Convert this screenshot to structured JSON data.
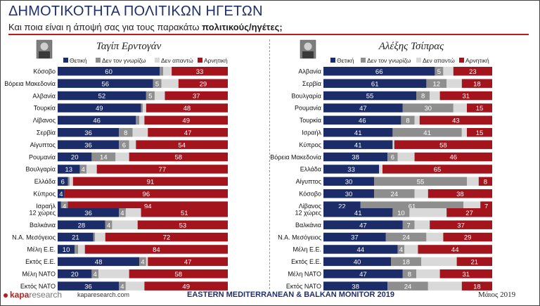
{
  "header": {
    "title": "ΔΗΜΟΤΙΚΟΤΗΤΑ ΠΟΛΙΤΙΚΩΝ ΗΓΕΤΩΝ",
    "subtitle_plain": "Και ποια είναι η άποψή σας για τους παρακάτω ",
    "subtitle_bold": "πολιτικούς/ηγέτες;"
  },
  "footer": {
    "brand_main": "kapa",
    "brand_light": "research",
    "url": "kaparesearch.com",
    "center": "EASTERN MEDITERRANEAN & BALKAN MONITOR 2019",
    "date": "Μάιος 2019"
  },
  "colors": {
    "positive": "#1b2c68",
    "dontknow": "#8e8e8e",
    "noanswer": "#d9d9d9",
    "negative": "#a3141d",
    "accent_line": "#c01b1b"
  },
  "chart_data": [
    {
      "type": "bar",
      "stacked": true,
      "orientation": "horizontal",
      "leader": "Ταγίπ Ερντογάν",
      "legend": [
        "Θετική",
        "Δεν τον γνωρίζω",
        "Δεν απαντώ",
        "Αρνητική"
      ],
      "groups": [
        {
          "categories": [
            "Κόσοβο",
            "Βόρεια Μακεδονία",
            "Αλβανία",
            "Τουρκία",
            "Λίβανος",
            "Σερβία",
            "Αίγυπτος",
            "Ρουμανία",
            "Βουλγαρία",
            "Ελλάδα",
            "Κύπρος",
            "Ισραήλ"
          ],
          "series": [
            {
              "name": "Θετική",
              "values": [
                60,
                56,
                52,
                49,
                46,
                36,
                36,
                20,
                13,
                6,
                4,
                2
              ]
            },
            {
              "name": "Δεν τον γνωρίζω",
              "values": [
                2,
                5,
                5,
                1,
                2,
                8,
                6,
                14,
                4,
                1,
                0,
                4
              ]
            },
            {
              "name": "Δεν απαντώ",
              "values": [
                5,
                10,
                6,
                2,
                3,
                9,
                4,
                8,
                6,
                2,
                0,
                0
              ]
            },
            {
              "name": "Αρνητική",
              "values": [
                33,
                29,
                37,
                48,
                49,
                47,
                54,
                58,
                77,
                91,
                96,
                94
              ]
            }
          ]
        },
        {
          "categories": [
            "12 χώρες",
            "Βαλκάνια",
            "Ν.Α. Μεσόγειος",
            "Μέλη Ε.Ε.",
            "Εκτός Ε.Ε.",
            "Μέλη ΝΑΤΟ",
            "Εκτός ΝΑΤΟ"
          ],
          "series": [
            {
              "name": "Θετική",
              "values": [
                36,
                28,
                21,
                10,
                48,
                20,
                36
              ]
            },
            {
              "name": "Δεν τον γνωρίζω",
              "values": [
                4,
                4,
                1,
                2,
                4,
                4,
                4
              ]
            },
            {
              "name": "Δεν απαντώ",
              "values": [
                9,
                15,
                6,
                4,
                1,
                18,
                11
              ]
            },
            {
              "name": "Αρνητική",
              "values": [
                51,
                53,
                72,
                84,
                47,
                58,
                49
              ]
            }
          ]
        }
      ]
    },
    {
      "type": "bar",
      "stacked": true,
      "orientation": "horizontal",
      "leader": "Αλέξης Τσίπρας",
      "legend": [
        "Θετική",
        "Δεν τον γνωρίζω",
        "Δεν απαντώ",
        "Αρνητική"
      ],
      "groups": [
        {
          "categories": [
            "Αλβανία",
            "Σερβία",
            "Βουλγαρία",
            "Ρουμανία",
            "Τουρκία",
            "Ισραήλ",
            "Κύπρος",
            "Βόρεια Μακεδονία",
            "Ελλάδα",
            "Αίγυπτος",
            "Κόσοβο",
            "Λίβανος"
          ],
          "series": [
            {
              "name": "Θετική",
              "values": [
                66,
                61,
                55,
                47,
                46,
                41,
                41,
                38,
                33,
                30,
                30,
                22
              ]
            },
            {
              "name": "Δεν τον γνωρίζω",
              "values": [
                5,
                12,
                8,
                30,
                8,
                41,
                0,
                6,
                0,
                55,
                24,
                61
              ]
            },
            {
              "name": "Δεν απαντώ",
              "values": [
                6,
                9,
                6,
                8,
                3,
                3,
                1,
                10,
                2,
                7,
                8,
                10
              ]
            },
            {
              "name": "Αρνητική",
              "values": [
                23,
                18,
                31,
                15,
                43,
                15,
                58,
                46,
                65,
                8,
                38,
                7
              ]
            }
          ]
        },
        {
          "categories": [
            "12 χώρες",
            "Βαλκάνια",
            "Ν.Α. Μεσόγειος",
            "Μέλη Ε.Ε.",
            "Εκτός Ε.Ε.",
            "Μέλη ΝΑΤΟ",
            "Εκτός ΝΑΤΟ"
          ],
          "series": [
            {
              "name": "Θετική",
              "values": [
                41,
                47,
                37,
                44,
                40,
                47,
                38
              ]
            },
            {
              "name": "Δεν τον γνωρίζω",
              "values": [
                10,
                7,
                24,
                4,
                18,
                8,
                24
              ]
            },
            {
              "name": "Δεν απαντώ",
              "values": [
                22,
                9,
                10,
                8,
                21,
                14,
                20
              ]
            },
            {
              "name": "Αρνητική",
              "values": [
                27,
                37,
                29,
                44,
                21,
                31,
                18
              ]
            }
          ]
        }
      ]
    }
  ]
}
